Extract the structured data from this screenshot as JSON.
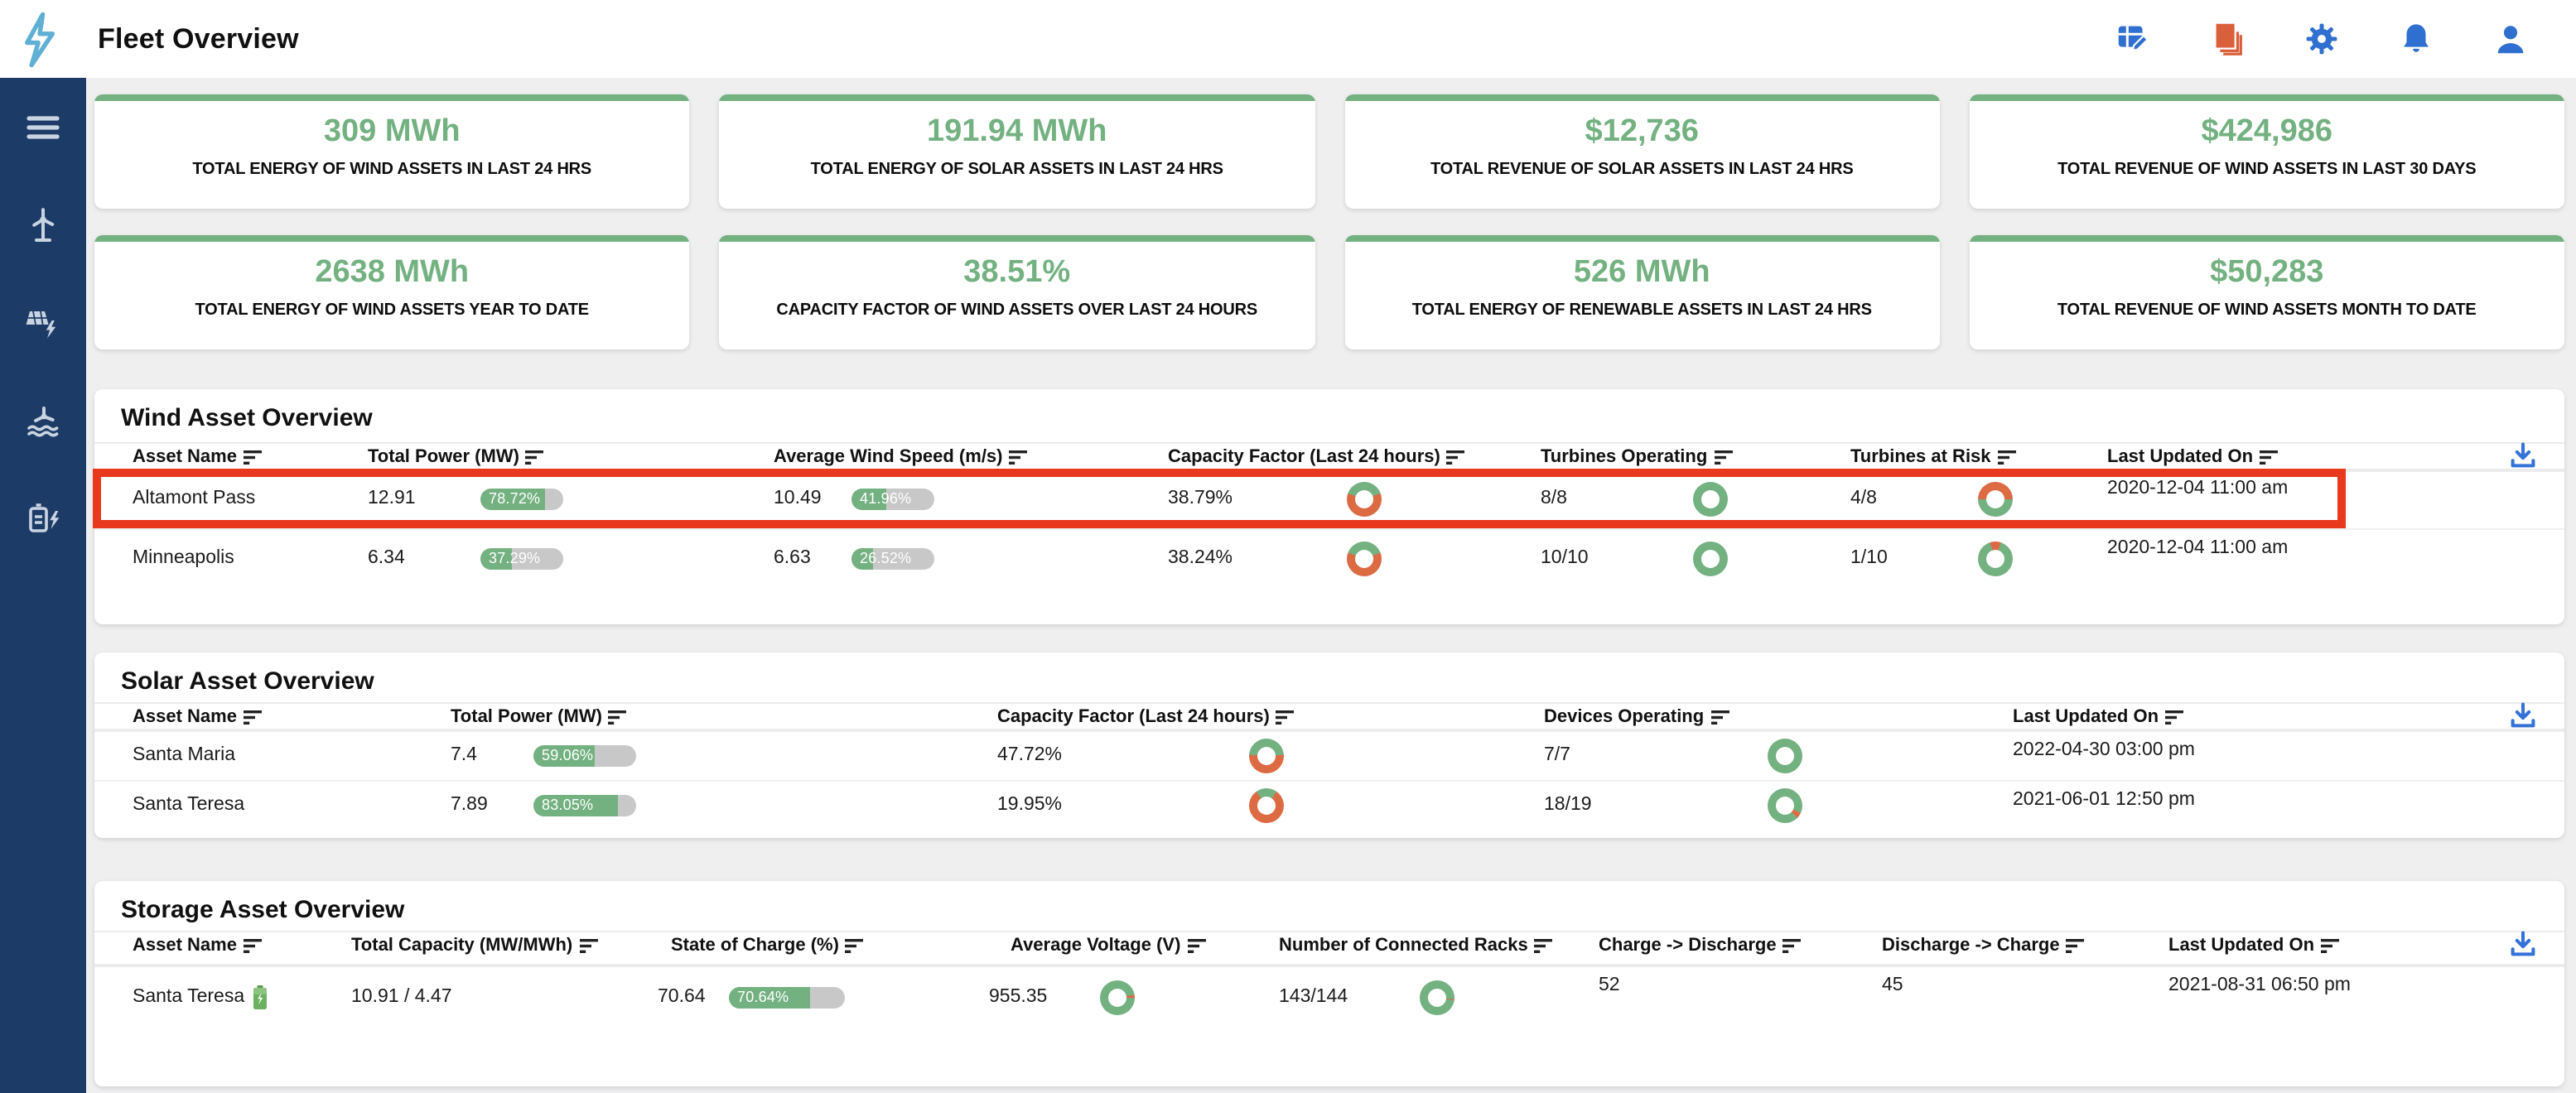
{
  "colors": {
    "green": "#74b181",
    "orange": "#dc6a43",
    "gray_track": "#c8c8c8",
    "highlight_red": "#e8391e",
    "navy": "#1d3b67",
    "blue": "#2f6fd0",
    "orange_icon": "#d9603b",
    "download_blue": "#3572d8",
    "logo_blue": "#5fb0d4"
  },
  "header": {
    "title": "Fleet Overview",
    "icons": [
      "table-edit-icon",
      "documents-icon",
      "gear-icon",
      "bell-icon",
      "account-icon"
    ]
  },
  "sidebar": {
    "items": [
      {
        "icon": "menu-icon"
      },
      {
        "icon": "wind-turbine-icon"
      },
      {
        "icon": "solar-bolt-icon"
      },
      {
        "icon": "hydro-turbine-icon"
      },
      {
        "icon": "battery-bolt-icon"
      }
    ]
  },
  "kpi_cards": [
    {
      "value": "309 MWh",
      "label": "TOTAL ENERGY OF WIND ASSETS IN LAST 24 HRS"
    },
    {
      "value": "191.94 MWh",
      "label": "TOTAL ENERGY OF SOLAR ASSETS IN LAST 24 HRS"
    },
    {
      "value": "$12,736",
      "label": "TOTAL REVENUE OF SOLAR ASSETS IN LAST 24 HRS"
    },
    {
      "value": "$424,986",
      "label": "TOTAL REVENUE OF WIND ASSETS IN LAST 30 DAYS"
    },
    {
      "value": "2638 MWh",
      "label": "TOTAL ENERGY OF WIND ASSETS YEAR TO DATE"
    },
    {
      "value": "38.51%",
      "label": "CAPACITY FACTOR OF WIND ASSETS OVER LAST 24 HOURS"
    },
    {
      "value": "526 MWh",
      "label": "TOTAL ENERGY OF RENEWABLE ASSETS IN LAST 24 HRS"
    },
    {
      "value": "$50,283",
      "label": "TOTAL REVENUE OF WIND ASSETS MONTH TO DATE"
    }
  ],
  "wind": {
    "title": "Wind Asset Overview",
    "columns": [
      "Asset Name",
      "Total Power (MW)",
      "Average Wind Speed (m/s)",
      "Capacity Factor (Last 24 hours)",
      "Turbines Operating",
      "Turbines at Risk",
      "Last Updated On"
    ],
    "rows": [
      {
        "name": "Altamont Pass",
        "power": "12.91",
        "power_pct": 78.72,
        "power_pct_label": "78.72%",
        "speed": "10.49",
        "speed_pct": 41.96,
        "speed_pct_label": "41.96%",
        "capacity_factor": "38.79%",
        "capacity_donut": {
          "green": 38.79,
          "mode": "centered"
        },
        "operating": "8/8",
        "operating_donut": {
          "green": 100,
          "mode": "full"
        },
        "at_risk": "4/8",
        "risk_donut": {
          "green": 50,
          "mode": "risk"
        },
        "updated": "2020-12-04 11:00 am",
        "highlighted": true
      },
      {
        "name": "Minneapolis",
        "power": "6.34",
        "power_pct": 37.29,
        "power_pct_label": "37.29%",
        "speed": "6.63",
        "speed_pct": 26.52,
        "speed_pct_label": "26.52%",
        "capacity_factor": "38.24%",
        "capacity_donut": {
          "green": 38.24,
          "mode": "centered"
        },
        "operating": "10/10",
        "operating_donut": {
          "green": 100,
          "mode": "full"
        },
        "at_risk": "1/10",
        "risk_donut": {
          "green": 90,
          "mode": "risk"
        },
        "updated": "2020-12-04 11:00 am",
        "highlighted": false
      }
    ]
  },
  "solar": {
    "title": "Solar Asset Overview",
    "columns": [
      "Asset Name",
      "Total Power (MW)",
      "Capacity Factor (Last 24 hours)",
      "Devices Operating",
      "Last Updated On"
    ],
    "rows": [
      {
        "name": "Santa Maria",
        "power": "7.4",
        "power_pct": 59.06,
        "power_pct_label": "59.06%",
        "capacity_factor": "47.72%",
        "capacity_donut": {
          "green": 47.72,
          "mode": "centered"
        },
        "devices": "7/7",
        "devices_donut": {
          "green": 100,
          "mode": "full"
        },
        "updated": "2022-04-30 03:00 pm"
      },
      {
        "name": "Santa Teresa",
        "power": "7.89",
        "power_pct": 83.05,
        "power_pct_label": "83.05%",
        "capacity_factor": "19.95%",
        "capacity_donut": {
          "green": 19.95,
          "mode": "centered"
        },
        "devices": "18/19",
        "devices_donut": {
          "green": 94.7,
          "mode": "sliver",
          "at": 115
        },
        "updated": "2021-06-01 12:50 pm"
      }
    ]
  },
  "storage": {
    "title": "Storage Asset Overview",
    "columns": [
      "Asset Name",
      "Total Capacity (MW/MWh)",
      "State of Charge (%)",
      "Average Voltage (V)",
      "Number of Connected Racks",
      "Charge -> Discharge",
      "Discharge -> Charge",
      "Last Updated On"
    ],
    "rows": [
      {
        "name": "Santa Teresa",
        "capacity": "10.91 / 4.47",
        "soc": "70.64",
        "soc_pct": 70.64,
        "soc_pct_label": "70.64%",
        "voltage": "955.35",
        "voltage_donut": {
          "green": 97,
          "mode": "sliver",
          "at": 80
        },
        "racks": "143/144",
        "racks_donut": {
          "green": 99,
          "mode": "sliver",
          "at": 95
        },
        "charge_to_discharge": "52",
        "discharge_to_charge": "45",
        "updated": "2021-08-31 06:50 pm"
      }
    ]
  }
}
